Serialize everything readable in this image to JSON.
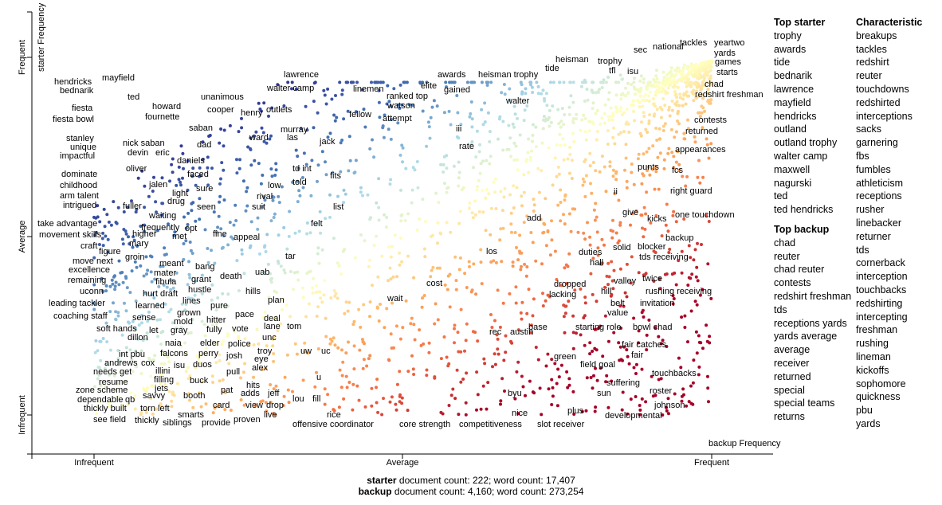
{
  "chart_data": {
    "type": "scatter",
    "title": "",
    "xlabel": "backup Frequency",
    "ylabel": "starter Frequency",
    "x_ticks": [
      "Infrequent",
      "Average",
      "Frequent"
    ],
    "y_ticks": [
      "Infrequent",
      "Average",
      "Frequent"
    ],
    "color_scale": {
      "starter": "#313695",
      "neutral": "#ffffbf",
      "backup": "#a50026"
    },
    "labels": [
      "hendricks",
      "mayfield",
      "bednarik",
      "ted",
      "howard",
      "fiesta",
      "fournette",
      "fiesta bowl",
      "unanimous",
      "cooper",
      "henry",
      "lawrence",
      "walter camp",
      "linemen",
      "outlets",
      "saban",
      "dad",
      "murray",
      "las",
      "ward",
      "stanley",
      "nick saban",
      "unique",
      "devin",
      "eric",
      "daniels",
      "impactful",
      "jack",
      "fellow",
      "oliver",
      "faced",
      "dominate",
      "childhood",
      "td int",
      "low",
      "told",
      "fits",
      "jalen",
      "light",
      "sure",
      "fuller",
      "drug",
      "arm talent",
      "intrigued",
      "rival",
      "seen",
      "suit",
      "list",
      "waiting",
      "take advantage",
      "frequently",
      "opt",
      "fine",
      "appeal",
      "felt",
      "movement skills",
      "higher",
      "mary",
      "met",
      "craft",
      "figure",
      "move next",
      "groin",
      "meant",
      "excellence",
      "bang",
      "mater",
      "tar",
      "fibula",
      "remaining",
      "grant",
      "death",
      "uab",
      "uconn",
      "hustle",
      "hurt draft",
      "hills",
      "plan",
      "leading tackler",
      "lines",
      "pure",
      "learned",
      "grown",
      "pace",
      "coaching staff",
      "sense",
      "mold",
      "deal",
      "hitter",
      "lane",
      "tom",
      "soft hands",
      "let",
      "gray",
      "fully",
      "vote",
      "dillon",
      "naia",
      "elder",
      "unc",
      "police",
      "int pbu",
      "troy",
      "falcons",
      "perry",
      "josh",
      "eye",
      "andrews",
      "cox",
      "isu",
      "duos",
      "alex",
      "needs get",
      "pull",
      "illini",
      "resume",
      "filling",
      "buck",
      "zone scheme",
      "jets",
      "hits",
      "adds",
      "pat",
      "dependable",
      "qb",
      "savvy",
      "booth",
      "jeff",
      "thickly built",
      "torn left",
      "view",
      "card",
      "drop",
      "see field",
      "thickly",
      "smarts",
      "live",
      "siblings",
      "provide",
      "proven",
      "lou",
      "fill",
      "uw",
      "uc",
      "u",
      "rice",
      "offensive coordinator",
      "awards",
      "elite",
      "gained",
      "ranked top",
      "watson",
      "attempt",
      "heisman",
      "heisman trophy",
      "tide",
      "walter",
      "trophy",
      "tfl",
      "isu",
      "sec",
      "national",
      "tackles",
      "yeartwo",
      "yards",
      "games",
      "starts",
      "chad",
      "redshirt freshman",
      "iii",
      "rate",
      "contests",
      "returned",
      "appearances",
      "punts",
      "fcs",
      "ii",
      "right guard",
      "give",
      "kicks",
      "one touchdown",
      "add",
      "backup",
      "solid",
      "blocker",
      "tds receiving",
      "duties",
      "los",
      "hall",
      "twice",
      "valley",
      "dropped",
      "lacking",
      "hill",
      "rushing receiving",
      "cost",
      "wait",
      "belt",
      "invitation",
      "value",
      "base",
      "rec",
      "austin",
      "starting role",
      "bowl chad",
      "fair catches",
      "fair",
      "green",
      "field goal",
      "touchbacks",
      "suffering",
      "sun",
      "roster",
      "byu",
      "johnson",
      "plus",
      "developmental",
      "core strength",
      "competitiveness",
      "nice",
      "slot receiver"
    ]
  },
  "top_starter": {
    "title": "Top starter",
    "items": [
      "trophy",
      "awards",
      "tide",
      "bednarik",
      "lawrence",
      "mayfield",
      "hendricks",
      "outland",
      "outland trophy",
      "walter camp",
      "maxwell",
      "nagurski",
      "ted",
      "ted hendricks"
    ]
  },
  "top_backup": {
    "title": "Top backup",
    "items": [
      "chad",
      "reuter",
      "chad reuter",
      "contests",
      "redshirt freshman",
      "tds",
      "receptions yards",
      "yards average",
      "average",
      "receiver",
      "returned",
      "special",
      "special teams",
      "returns"
    ]
  },
  "characteristic": {
    "title": "Characteristic",
    "items": [
      "breakups",
      "tackles",
      "redshirt",
      "reuter",
      "touchdowns",
      "redshirted",
      "interceptions",
      "sacks",
      "garnering",
      "fbs",
      "fumbles",
      "athleticism",
      "receptions",
      "rusher",
      "linebacker",
      "returner",
      "tds",
      "cornerback",
      "interception",
      "touchbacks",
      "redshirting",
      "intercepting",
      "freshman",
      "rushing",
      "lineman",
      "kickoffs",
      "sophomore",
      "quickness",
      "pbu",
      "yards"
    ]
  },
  "counts": {
    "starter_name": "starter",
    "starter_text": " document count: 222; word count: 17,407",
    "backup_name": "backup",
    "backup_text": " document count: 4,160; word count: 273,254"
  }
}
